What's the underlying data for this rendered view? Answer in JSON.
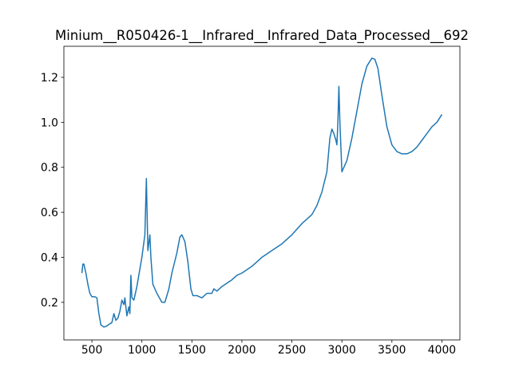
{
  "chart_data": {
    "type": "line",
    "title": "Minium__R050426-1__Infrared__Infrared_Data_Processed__692",
    "x": [
      400,
      410,
      420,
      440,
      460,
      480,
      500,
      530,
      550,
      570,
      590,
      620,
      650,
      680,
      700,
      720,
      740,
      760,
      780,
      800,
      820,
      830,
      850,
      870,
      880,
      890,
      900,
      920,
      950,
      1000,
      1030,
      1045,
      1060,
      1080,
      1090,
      1110,
      1150,
      1200,
      1230,
      1270,
      1300,
      1350,
      1380,
      1400,
      1430,
      1460,
      1490,
      1510,
      1550,
      1600,
      1650,
      1700,
      1720,
      1750,
      1800,
      1900,
      1950,
      2000,
      2100,
      2200,
      2300,
      2400,
      2500,
      2600,
      2700,
      2750,
      2800,
      2850,
      2880,
      2900,
      2920,
      2940,
      2950,
      2960,
      2970,
      2980,
      3000,
      3050,
      3100,
      3150,
      3200,
      3250,
      3300,
      3330,
      3360,
      3400,
      3450,
      3500,
      3550,
      3600,
      3650,
      3700,
      3750,
      3800,
      3850,
      3900,
      3950,
      4000
    ],
    "series": [
      {
        "color": "#1f77b4",
        "values": [
          0.33,
          0.37,
          0.37,
          0.33,
          0.28,
          0.24,
          0.225,
          0.225,
          0.22,
          0.15,
          0.1,
          0.09,
          0.095,
          0.105,
          0.11,
          0.15,
          0.12,
          0.13,
          0.16,
          0.21,
          0.19,
          0.22,
          0.14,
          0.18,
          0.15,
          0.32,
          0.22,
          0.21,
          0.27,
          0.4,
          0.5,
          0.75,
          0.43,
          0.5,
          0.4,
          0.28,
          0.24,
          0.2,
          0.2,
          0.26,
          0.33,
          0.42,
          0.49,
          0.5,
          0.47,
          0.38,
          0.26,
          0.23,
          0.23,
          0.22,
          0.24,
          0.24,
          0.26,
          0.25,
          0.27,
          0.3,
          0.32,
          0.33,
          0.36,
          0.4,
          0.43,
          0.46,
          0.5,
          0.55,
          0.59,
          0.63,
          0.69,
          0.78,
          0.93,
          0.97,
          0.95,
          0.92,
          0.9,
          1.0,
          1.16,
          1.0,
          0.78,
          0.83,
          0.93,
          1.05,
          1.17,
          1.25,
          1.285,
          1.28,
          1.24,
          1.12,
          0.98,
          0.9,
          0.87,
          0.86,
          0.86,
          0.87,
          0.89,
          0.92,
          0.95,
          0.98,
          1.0,
          1.035
        ]
      }
    ],
    "xlim": [
      220,
      4180
    ],
    "ylim": [
      0.033,
      1.338
    ],
    "xticks": [
      500,
      1000,
      1500,
      2000,
      2500,
      3000,
      3500,
      4000
    ],
    "yticks": [
      0.2,
      0.4,
      0.6,
      0.8,
      {
        "value": 1,
        "label": "1.0"
      },
      1.2
    ]
  }
}
